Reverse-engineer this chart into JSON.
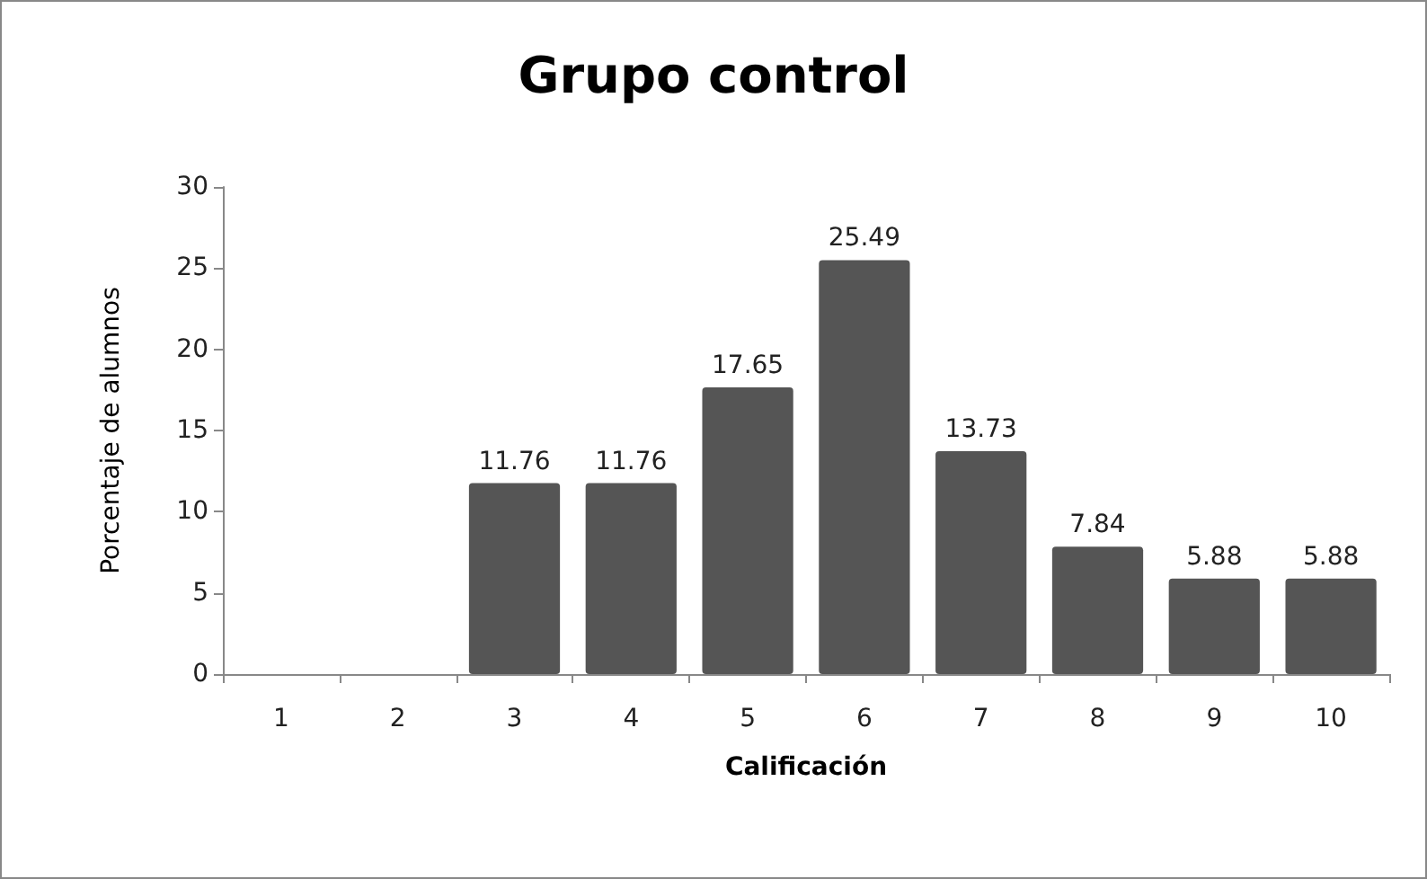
{
  "chart_data": {
    "type": "bar",
    "title": "Grupo control",
    "xlabel": "Calificación",
    "ylabel": "Porcentaje de alumnos",
    "categories": [
      "1",
      "2",
      "3",
      "4",
      "5",
      "6",
      "7",
      "8",
      "9",
      "10"
    ],
    "values": [
      null,
      null,
      11.76,
      11.76,
      17.65,
      25.49,
      13.73,
      7.84,
      5.88,
      5.88
    ],
    "value_labels": [
      null,
      null,
      "11.76",
      "11.76",
      "17.65",
      "25.49",
      "13.73",
      "7.84",
      "5.88",
      "5.88"
    ],
    "color": "#555555",
    "ylim": [
      0,
      30
    ],
    "yticks": [
      0,
      5,
      10,
      15,
      20,
      25,
      30
    ],
    "grid": false
  }
}
